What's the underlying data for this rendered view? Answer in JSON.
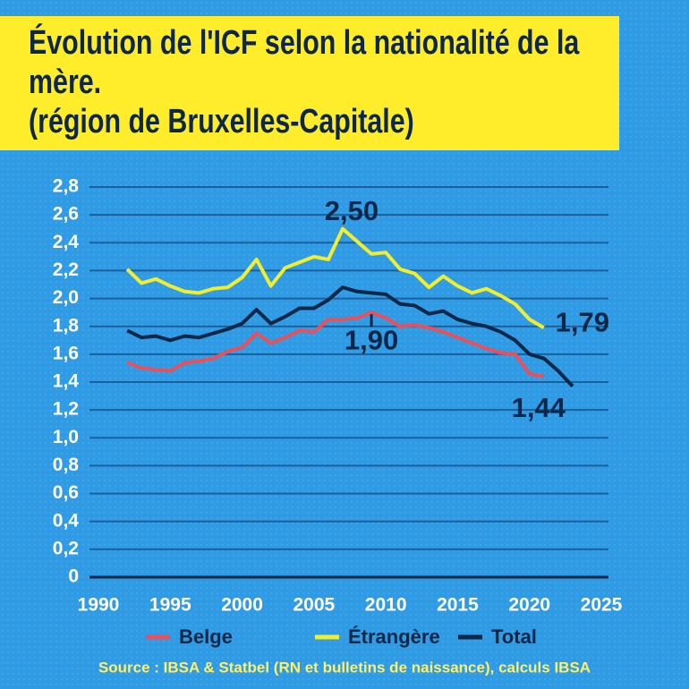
{
  "chart_data": {
    "type": "line",
    "title": "Évolution de l'ICF selon la nationalité de la mère.",
    "subtitle": "(région de Bruxelles-Capitale)",
    "source": "Source : IBSA & Statbel (RN et bulletins de naissance), calculs IBSA",
    "x": [
      1992,
      1993,
      1994,
      1995,
      1996,
      1997,
      1998,
      1999,
      2000,
      2001,
      2002,
      2003,
      2004,
      2005,
      2006,
      2007,
      2008,
      2009,
      2010,
      2011,
      2012,
      2013,
      2014,
      2015,
      2016,
      2017,
      2018,
      2019,
      2020,
      2021,
      2022,
      2023
    ],
    "series": [
      {
        "name": "Belge",
        "color": "#e8505b",
        "values": [
          1.54,
          1.5,
          1.49,
          1.48,
          1.54,
          1.55,
          1.57,
          1.62,
          1.65,
          1.75,
          1.68,
          1.72,
          1.77,
          1.76,
          1.85,
          1.85,
          1.86,
          1.9,
          1.86,
          1.8,
          1.81,
          1.79,
          1.76,
          1.72,
          1.68,
          1.64,
          1.61,
          1.6,
          1.46,
          1.44,
          null,
          null
        ]
      },
      {
        "name": "Étrangère",
        "color": "#f2ee2e",
        "values": [
          2.21,
          2.11,
          2.14,
          2.09,
          2.05,
          2.04,
          2.07,
          2.08,
          2.15,
          2.28,
          2.09,
          2.22,
          2.26,
          2.3,
          2.28,
          2.5,
          2.41,
          2.32,
          2.33,
          2.21,
          2.18,
          2.08,
          2.16,
          2.09,
          2.04,
          2.07,
          2.02,
          1.96,
          1.85,
          1.79,
          null,
          null
        ]
      },
      {
        "name": "Total",
        "color": "#0d2748",
        "values": [
          1.77,
          1.72,
          1.73,
          1.7,
          1.73,
          1.72,
          1.75,
          1.78,
          1.82,
          1.92,
          1.82,
          1.87,
          1.93,
          1.93,
          1.99,
          2.08,
          2.05,
          2.04,
          2.03,
          1.96,
          1.95,
          1.89,
          1.91,
          1.85,
          1.82,
          1.8,
          1.76,
          1.7,
          1.6,
          1.57,
          1.48,
          1.37
        ]
      }
    ],
    "annotations": [
      {
        "label": "2,50",
        "x": 2007,
        "value": 2.5
      },
      {
        "label": "1,90",
        "x": 2009,
        "value": 1.9
      },
      {
        "label": "1,79",
        "x": 2021,
        "value": 1.79
      },
      {
        "label": "1,44",
        "x": 2021,
        "value": 1.44
      }
    ],
    "xlim": [
      1990,
      2025
    ],
    "xticks": [
      1990,
      1995,
      2000,
      2005,
      2010,
      2015,
      2020,
      2025
    ],
    "ylim": [
      0,
      2.8
    ],
    "yticks": [
      0,
      {
        "value": 0.2,
        "label": "0,2"
      },
      {
        "value": 0.4,
        "label": "0,4"
      },
      {
        "value": 0.6,
        "label": "0,6"
      },
      {
        "value": 0.8,
        "label": "0,8"
      },
      {
        "value": 1.0,
        "label": "1,0"
      },
      {
        "value": 1.2,
        "label": "1,2"
      },
      {
        "value": 1.4,
        "label": "1,4"
      },
      {
        "value": 1.6,
        "label": "1,6"
      },
      {
        "value": 1.8,
        "label": "1,8"
      },
      {
        "value": 2.0,
        "label": "2,0"
      },
      {
        "value": 2.2,
        "label": "2,2"
      },
      {
        "value": 2.4,
        "label": "2,4"
      },
      {
        "value": 2.6,
        "label": "2,6"
      },
      {
        "value": 2.8,
        "label": "2,8"
      }
    ],
    "grid": true
  }
}
